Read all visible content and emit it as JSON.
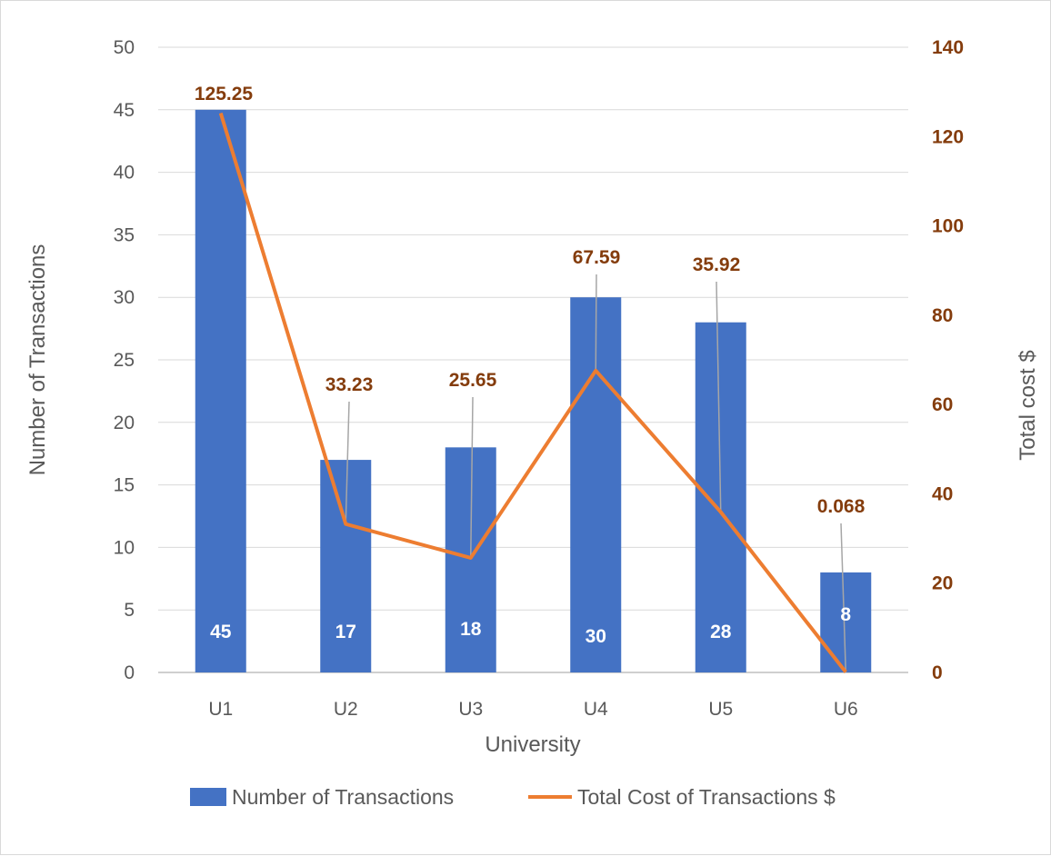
{
  "chart_data": {
    "type": "bar",
    "categories": [
      "U1",
      "U2",
      "U3",
      "U4",
      "U5",
      "U6"
    ],
    "xlabel": "University",
    "ylabel": "Number of Transactions",
    "y2label": "Total cost $",
    "ylim": [
      0,
      50
    ],
    "y2lim": [
      0,
      140
    ],
    "yticks": [
      0,
      5,
      10,
      15,
      20,
      25,
      30,
      35,
      40,
      45,
      50
    ],
    "y2ticks": [
      0,
      20,
      40,
      60,
      80,
      100,
      120,
      140
    ],
    "grid": true,
    "legend_position": "bottom",
    "series": [
      {
        "name": "Number of Transactions",
        "type": "bar",
        "axis": "left",
        "color": "#4472c4",
        "values": [
          45,
          17,
          18,
          30,
          28,
          8
        ],
        "labels": [
          "45",
          "17",
          "18",
          "30",
          "28",
          "8"
        ]
      },
      {
        "name": "Total Cost of Transactions $",
        "type": "line",
        "axis": "right",
        "color": "#ed7d31",
        "values": [
          125.25,
          33.23,
          25.65,
          67.59,
          35.92,
          0.068
        ],
        "labels": [
          "125.25",
          "33.23",
          "25.65",
          "67.59",
          "35.92",
          "0.068"
        ]
      }
    ]
  }
}
